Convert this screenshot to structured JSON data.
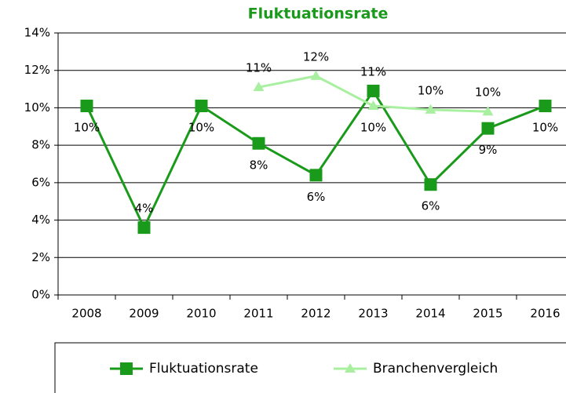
{
  "chart_data": {
    "type": "line",
    "title": "Fluktuationsrate",
    "categories": [
      "2008",
      "2009",
      "2010",
      "2011",
      "2012",
      "2013",
      "2014",
      "2015",
      "2016"
    ],
    "series": [
      {
        "name": "Fluktuationsrate",
        "color": "#1a9a1a",
        "marker": "square",
        "values": [
          10.1,
          3.6,
          10.1,
          8.1,
          6.4,
          10.9,
          5.9,
          8.9,
          10.1
        ],
        "value_labels": [
          "10%",
          "4%",
          "10%",
          "8%",
          "6%",
          "11%",
          "6%",
          "9%",
          "10%"
        ]
      },
      {
        "name": "Branchenvergleich",
        "color": "#a8f0a0",
        "marker": "triangle",
        "values": [
          null,
          null,
          null,
          11.1,
          11.7,
          10.1,
          9.9,
          9.8,
          null
        ],
        "value_labels": [
          null,
          null,
          null,
          "11%",
          "12%",
          "10%",
          "10%",
          "10%",
          null
        ]
      }
    ],
    "ylim": [
      0,
      14
    ],
    "yticks": [
      {
        "value": 0,
        "label": "0%"
      },
      {
        "value": 2,
        "label": "2%"
      },
      {
        "value": 4,
        "label": "4%"
      },
      {
        "value": 6,
        "label": "6%"
      },
      {
        "value": 8,
        "label": "8%"
      },
      {
        "value": 10,
        "label": "10%"
      },
      {
        "value": 12,
        "label": "12%"
      },
      {
        "value": 14,
        "label": "14%"
      }
    ],
    "grid": true,
    "legend": "bottom"
  }
}
